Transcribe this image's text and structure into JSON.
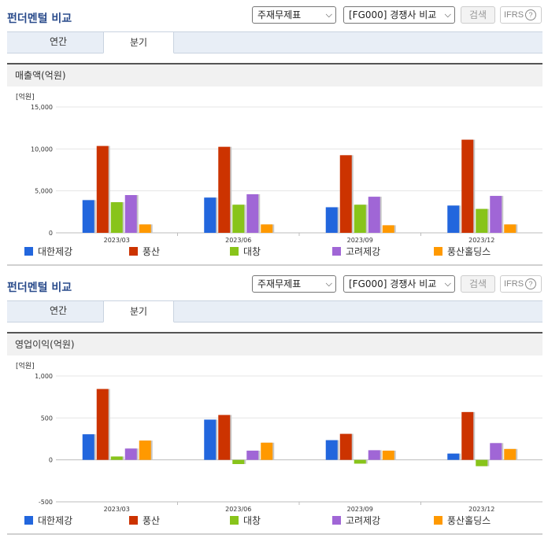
{
  "series_colors": [
    "#2266dd",
    "#cc3300",
    "#88c41a",
    "#a066d6",
    "#ff9900"
  ],
  "sections": [
    {
      "title": "펀더멘털 비교",
      "select1": "주재무제표",
      "select2": "[FG000] 경쟁사 비교",
      "search_label": "검색",
      "ifrs_label": "IFRS",
      "ifrs_help": "?",
      "tabs": [
        "연간",
        "분기"
      ],
      "active_tab": 1,
      "panel_title": "매출액(억원)",
      "unit_label": "[억원]"
    },
    {
      "title": "펀더멘털 비교",
      "select1": "주재무제표",
      "select2": "[FG000] 경쟁사 비교",
      "search_label": "검색",
      "ifrs_label": "IFRS",
      "ifrs_help": "?",
      "tabs": [
        "연간",
        "분기"
      ],
      "active_tab": 1,
      "panel_title": "영업이익(억원)",
      "unit_label": "[억원]"
    }
  ],
  "chart_data": [
    {
      "type": "bar",
      "title": "매출액(억원)",
      "ylabel": "[억원]",
      "categories": [
        "2023/03",
        "2023/06",
        "2023/09",
        "2023/12"
      ],
      "ylim": [
        0,
        15000
      ],
      "yticks": [
        0,
        5000,
        10000,
        15000
      ],
      "ytick_labels": [
        "0",
        "5,000",
        "10,000",
        "15,000"
      ],
      "series": [
        {
          "name": "대한제강",
          "values": [
            3900,
            4200,
            3050,
            3250
          ]
        },
        {
          "name": "풍산",
          "values": [
            10350,
            10250,
            9250,
            11100
          ]
        },
        {
          "name": "대창",
          "values": [
            3650,
            3350,
            3350,
            2850
          ]
        },
        {
          "name": "고려제강",
          "values": [
            4500,
            4600,
            4300,
            4400
          ]
        },
        {
          "name": "풍산홀딩스",
          "values": [
            1000,
            1000,
            900,
            1000
          ]
        }
      ]
    },
    {
      "type": "bar",
      "title": "영업이익(억원)",
      "ylabel": "[억원]",
      "categories": [
        "2023/03",
        "2023/06",
        "2023/09",
        "2023/12"
      ],
      "ylim": [
        -500,
        1000
      ],
      "yticks": [
        -500,
        0,
        500,
        1000
      ],
      "ytick_labels": [
        "-500",
        "0",
        "500",
        "1,000"
      ],
      "series": [
        {
          "name": "대한제강",
          "values": [
            305,
            480,
            235,
            75
          ]
        },
        {
          "name": "풍산",
          "values": [
            845,
            535,
            310,
            570
          ]
        },
        {
          "name": "대창",
          "values": [
            40,
            -50,
            -45,
            -75
          ]
        },
        {
          "name": "고려제강",
          "values": [
            135,
            110,
            115,
            200
          ]
        },
        {
          "name": "풍산홀딩스",
          "values": [
            230,
            205,
            110,
            130
          ]
        }
      ]
    }
  ]
}
